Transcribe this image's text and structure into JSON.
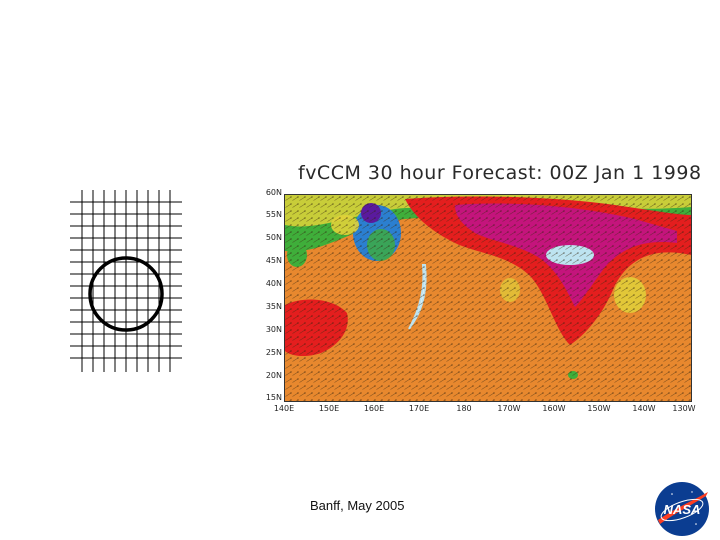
{
  "figure": {
    "title": "fvCCM  30 hour Forecast:  00Z Jan 1 1998",
    "lat_labels": [
      "60N",
      "55N",
      "50N",
      "45N",
      "40N",
      "35N",
      "30N",
      "25N",
      "20N",
      "15N"
    ],
    "lon_labels": [
      "140E",
      "150E",
      "160E",
      "170E",
      "180",
      "170W",
      "160W",
      "150W",
      "140W",
      "130W"
    ]
  },
  "footer": {
    "text": "Banff, May 2005"
  },
  "logo": {
    "text": "NASA"
  },
  "colors": {
    "orange": "#e8882e",
    "red": "#e41e1e",
    "magenta": "#c4147c",
    "yellow": "#e0d23a",
    "green": "#3fae3a",
    "blue": "#2b7fd0",
    "purple": "#5a1a9e",
    "light_blue": "#bde3f0"
  }
}
